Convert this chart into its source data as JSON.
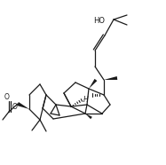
{
  "bg_color": "#ffffff",
  "line_color": "#1a1a1a",
  "figsize": [
    1.87,
    1.86
  ],
  "dpi": 100,
  "lw": 0.9,
  "ho_label": "HO",
  "h_label": "H"
}
